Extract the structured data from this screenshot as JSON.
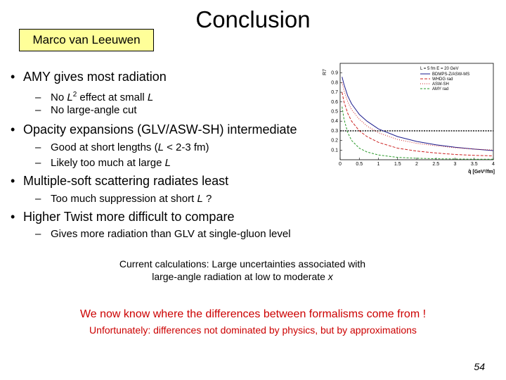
{
  "header": {
    "author": "Marco van Leeuwen",
    "title": "Conclusion"
  },
  "bullets": [
    {
      "text": "AMY gives most radiation",
      "subs": [
        [
          {
            "t": "No "
          },
          {
            "t": "L",
            "i": 1
          },
          {
            "t": "2",
            "s": 1
          },
          {
            "t": " effect at small "
          },
          {
            "t": "L",
            "i": 1
          }
        ],
        [
          {
            "t": "No large-angle cut"
          }
        ]
      ]
    },
    {
      "text": "Opacity expansions (GLV/ASW-SH) intermediate",
      "subs": [
        [
          {
            "t": "Good at short lengths ("
          },
          {
            "t": "L",
            "i": 1
          },
          {
            "t": " < 2-3 fm)"
          }
        ],
        [
          {
            "t": "Likely too much at large "
          },
          {
            "t": "L",
            "i": 1
          }
        ]
      ]
    },
    {
      "text": "Multiple-soft scattering radiates least",
      "subs": [
        [
          {
            "t": "Too much suppression at short "
          },
          {
            "t": "L",
            "i": 1
          },
          {
            "t": " ?"
          }
        ]
      ]
    },
    {
      "text": "Higher Twist more difficult to compare",
      "subs": [
        [
          {
            "t": "Gives more radiation than GLV at single-gluon level"
          }
        ]
      ]
    }
  ],
  "note": {
    "line1": "Current calculations: Large uncertainties associated with",
    "line2_prefix": "large-angle radiation at low to moderate ",
    "line2_var": "x"
  },
  "closing": {
    "line1": "We now know where the differences between formalisms come from !",
    "line2": "Unfortunately: differences not dominated by physics, but by approximations",
    "color": "#cc0000"
  },
  "page_number": "54",
  "chart_data": {
    "type": "line",
    "ylabel": "R7",
    "xlabel": "q̂ [GeV²/fm]",
    "xlim": [
      0,
      4
    ],
    "ylim": [
      0,
      1
    ],
    "xticks": [
      0,
      0.5,
      1,
      1.5,
      2,
      2.5,
      3,
      3.5,
      4
    ],
    "yticks": [
      0.1,
      0.2,
      0.3,
      0.4,
      0.5,
      0.6,
      0.7,
      0.8,
      0.9
    ],
    "legend_title": "L = 5 fm  E = 20 GeV",
    "legend_position": "top-right",
    "reference_line_y": 0.3,
    "series": [
      {
        "name": "BDMPS-Z/ASW-MS",
        "color": "#1a1a8c",
        "dash": "",
        "x": [
          0.05,
          0.1,
          0.2,
          0.3,
          0.5,
          0.7,
          1,
          1.5,
          2,
          2.5,
          3,
          3.5,
          4
        ],
        "y": [
          0.86,
          0.78,
          0.66,
          0.58,
          0.47,
          0.4,
          0.32,
          0.24,
          0.19,
          0.155,
          0.13,
          0.11,
          0.095
        ]
      },
      {
        "name": "WHDG rad",
        "color": "#cc2222",
        "dash": "4,2",
        "x": [
          0.05,
          0.1,
          0.2,
          0.3,
          0.5,
          0.7,
          1,
          1.5,
          2,
          2.5,
          3,
          3.5,
          4
        ],
        "y": [
          0.7,
          0.6,
          0.48,
          0.4,
          0.3,
          0.24,
          0.18,
          0.12,
          0.09,
          0.07,
          0.055,
          0.045,
          0.04
        ]
      },
      {
        "name": "ASW-SH",
        "color": "#cc2222",
        "dash": "1,2",
        "x": [
          0.05,
          0.1,
          0.2,
          0.3,
          0.5,
          0.7,
          1,
          1.5,
          2,
          2.5,
          3,
          3.5,
          4
        ],
        "y": [
          0.8,
          0.72,
          0.6,
          0.52,
          0.42,
          0.35,
          0.28,
          0.21,
          0.17,
          0.145,
          0.125,
          0.11,
          0.1
        ]
      },
      {
        "name": "AMY rad",
        "color": "#2a9a2a",
        "dash": "3,2",
        "x": [
          0.05,
          0.1,
          0.2,
          0.3,
          0.5,
          0.7,
          1,
          1.5,
          2,
          2.5,
          3,
          3.5,
          4
        ],
        "y": [
          0.55,
          0.42,
          0.28,
          0.2,
          0.12,
          0.08,
          0.05,
          0.025,
          0.015,
          0.01,
          0.008,
          0.006,
          0.005
        ]
      }
    ]
  }
}
